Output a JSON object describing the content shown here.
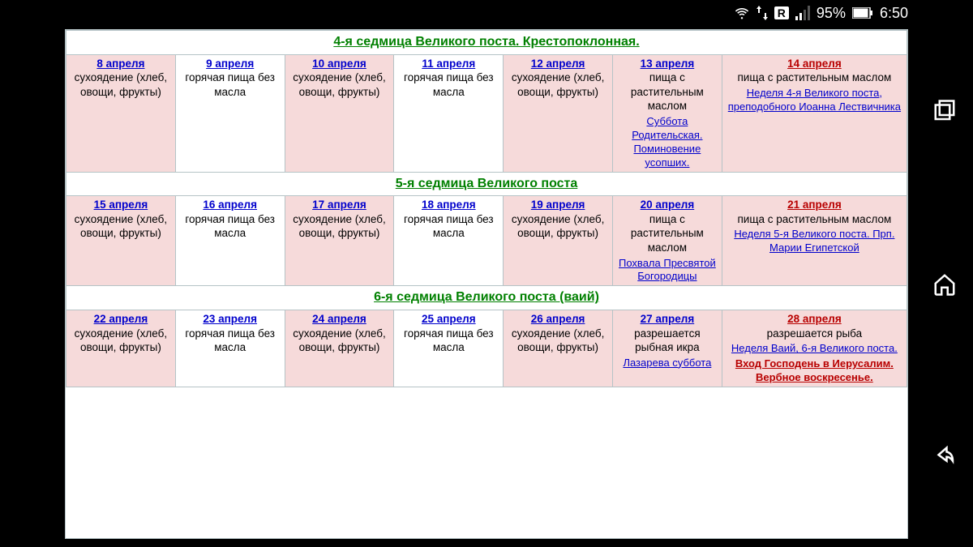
{
  "status": {
    "battery": "95%",
    "time": "6:50",
    "r_label": "R"
  },
  "weeks": [
    {
      "title": "4-я седмица Великого поста. Крестопоклонная.",
      "days": [
        {
          "date": "8 апреля",
          "date_class": "date-link",
          "bg": "cell-pink",
          "desc": "сухоядение (хлеб, овощи, фрукты)"
        },
        {
          "date": "9 апреля",
          "date_class": "date-link",
          "bg": "cell-white",
          "desc": "горячая пища без масла"
        },
        {
          "date": "10 апреля",
          "date_class": "date-link",
          "bg": "cell-pink",
          "desc": "сухоядение (хлеб, овощи, фрукты)"
        },
        {
          "date": "11 апреля",
          "date_class": "date-link",
          "bg": "cell-white",
          "desc": "горячая пища без масла"
        },
        {
          "date": "12 апреля",
          "date_class": "date-link",
          "bg": "cell-pink",
          "desc": "сухоядение (хлеб, овощи, фрукты)"
        },
        {
          "date": "13 апреля",
          "date_class": "date-link",
          "bg": "cell-pink",
          "desc": "пища с растительным маслом",
          "note": "Суббота Родительская. Поминовение усопших.",
          "note_class": "note-link"
        },
        {
          "date": "14 апреля",
          "date_class": "date-red",
          "bg": "cell-pink",
          "desc": "пища с растительным маслом",
          "note": "Неделя 4-я Великого поста, преподобного Иоанна Лествичника",
          "note_class": "note-link"
        }
      ]
    },
    {
      "title": "5-я седмица Великого поста",
      "days": [
        {
          "date": "15 апреля",
          "date_class": "date-link",
          "bg": "cell-pink",
          "desc": "сухоядение (хлеб, овощи, фрукты)"
        },
        {
          "date": "16 апреля",
          "date_class": "date-link",
          "bg": "cell-white",
          "desc": "горячая пища без масла"
        },
        {
          "date": "17 апреля",
          "date_class": "date-link",
          "bg": "cell-pink",
          "desc": "сухоядение (хлеб, овощи, фрукты)"
        },
        {
          "date": "18 апреля",
          "date_class": "date-link",
          "bg": "cell-white",
          "desc": "горячая пища без масла"
        },
        {
          "date": "19 апреля",
          "date_class": "date-link",
          "bg": "cell-pink",
          "desc": "сухоядение (хлеб, овощи, фрукты)"
        },
        {
          "date": "20 апреля",
          "date_class": "date-link",
          "bg": "cell-pink",
          "desc": "пища с растительным маслом",
          "note": "Похвала Пресвятой Богородицы",
          "note_class": "note-link"
        },
        {
          "date": "21 апреля",
          "date_class": "date-red",
          "bg": "cell-pink",
          "desc": "пища с растительным маслом",
          "note": "Неделя 5-я Великого поста. Прп. Марии Египетской",
          "note_class": "note-link"
        }
      ]
    },
    {
      "title": "6-я седмица Великого поста (ваий)",
      "days": [
        {
          "date": "22 апреля",
          "date_class": "date-link",
          "bg": "cell-pink",
          "desc": "сухоядение (хлеб, овощи, фрукты)"
        },
        {
          "date": "23 апреля",
          "date_class": "date-link",
          "bg": "cell-white",
          "desc": "горячая пища без масла"
        },
        {
          "date": "24 апреля",
          "date_class": "date-link",
          "bg": "cell-pink",
          "desc": "сухоядение (хлеб, овощи, фрукты)"
        },
        {
          "date": "25 апреля",
          "date_class": "date-link",
          "bg": "cell-white",
          "desc": "горячая пища без масла"
        },
        {
          "date": "26 апреля",
          "date_class": "date-link",
          "bg": "cell-pink",
          "desc": "сухоядение (хлеб, овощи, фрукты)"
        },
        {
          "date": "27 апреля",
          "date_class": "date-link",
          "bg": "cell-pink",
          "desc": "разрешается рыбная икра",
          "note": "Лазарева суббота",
          "note_class": "note-link"
        },
        {
          "date": "28 апреля",
          "date_class": "date-red",
          "bg": "cell-pink",
          "desc": "разрешается рыба",
          "note": "Неделя Ваий, 6-я Великого поста.",
          "note_class": "note-link",
          "note2": "Вход Господень в Иерусалим. Вербное воскресенье.",
          "note2_class": "note-red"
        }
      ]
    }
  ]
}
